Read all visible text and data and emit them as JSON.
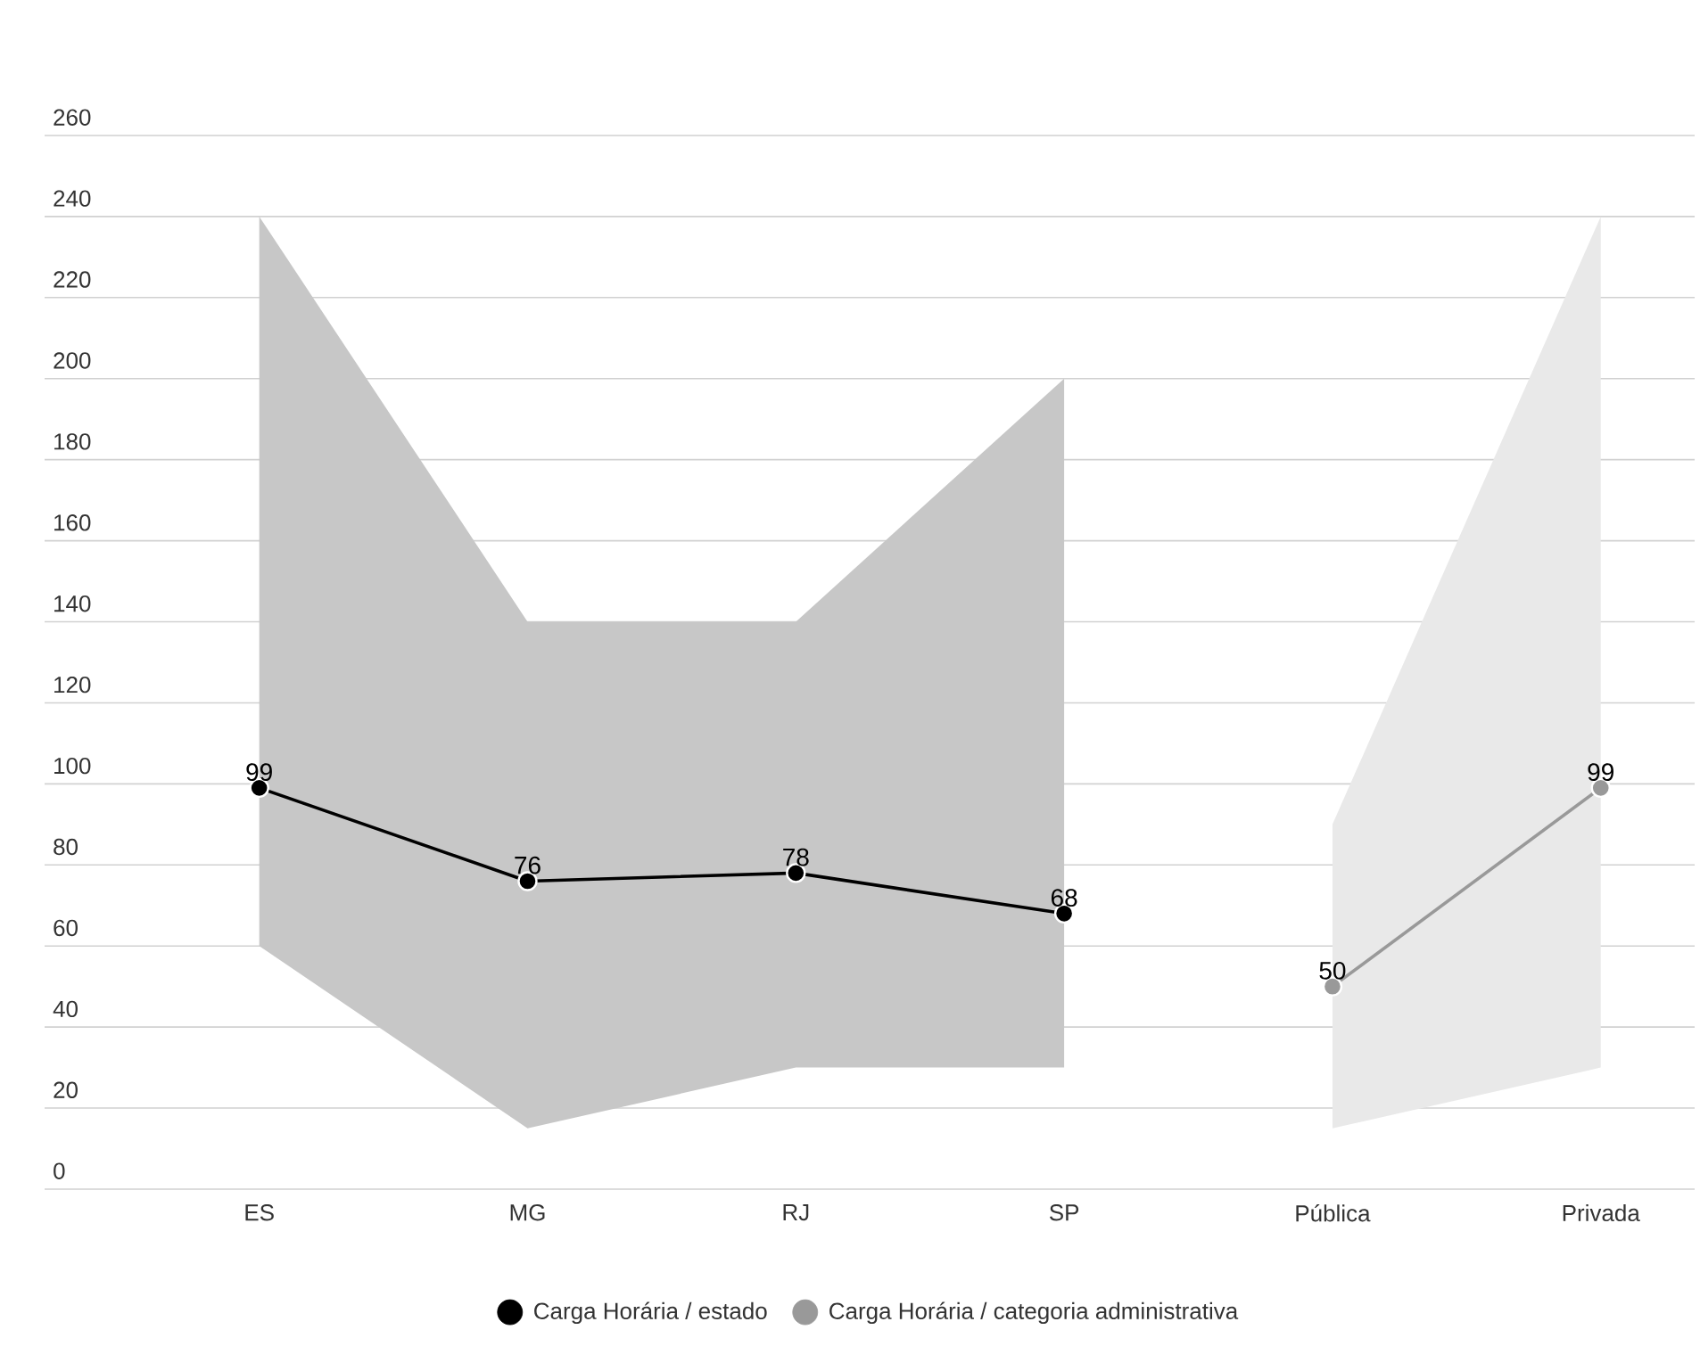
{
  "chart_data": {
    "type": "line",
    "categories": [
      "ES",
      "MG",
      "RJ",
      "SP",
      "Pública",
      "Privada"
    ],
    "series": [
      {
        "name": "Carga Horária / estado",
        "color": "#000000",
        "values": [
          99,
          76,
          78,
          68,
          null,
          null
        ],
        "lower": [
          60,
          15,
          30,
          30,
          null,
          null
        ],
        "upper": [
          240,
          140,
          140,
          200,
          null,
          null
        ]
      },
      {
        "name": "Carga Horária / categoria administrativa",
        "color": "#999999",
        "values": [
          null,
          null,
          null,
          null,
          50,
          99
        ],
        "lower": [
          null,
          null,
          null,
          null,
          15,
          30
        ],
        "upper": [
          null,
          null,
          null,
          null,
          90,
          240
        ]
      }
    ],
    "ylim": [
      0,
      260
    ],
    "yticks": [
      0,
      20,
      40,
      60,
      80,
      100,
      120,
      140,
      160,
      180,
      200,
      220,
      240,
      260
    ],
    "grid": "y",
    "legend": "bottom",
    "marker": "circle",
    "line_style": "solid",
    "data_labels": true
  }
}
